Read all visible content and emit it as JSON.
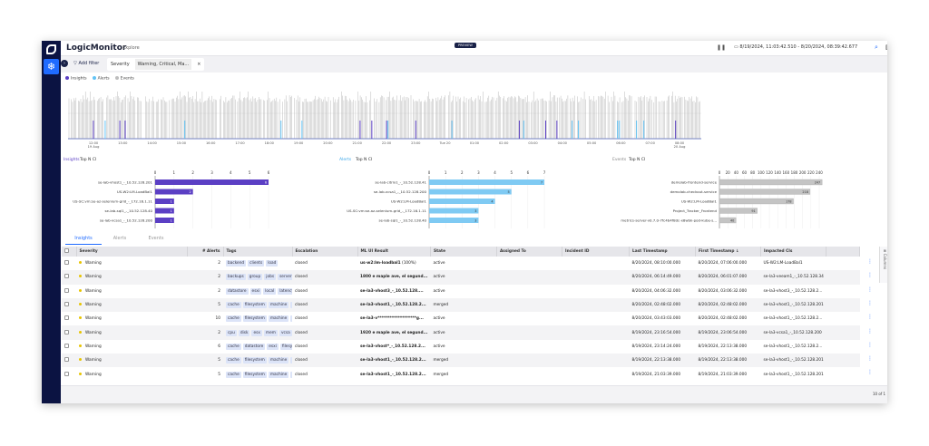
{
  "header": {
    "brand": "LogicMonitor",
    "breadcrumb": "Explore",
    "preview_badge": "PREVIEW",
    "date_range": "8/19/2024, 11:03:42.510 - 8/20/2024, 08:39:42.677"
  },
  "filter": {
    "add_filter": "Add filter",
    "chip_field": "Severity",
    "chip_value": "Warning, Critical, Ma...",
    "chip_close": "×"
  },
  "legend": [
    {
      "label": "Insights",
      "color": "#5b3fc4"
    },
    {
      "label": "Alerts",
      "color": "#62c3f5"
    },
    {
      "label": "Events",
      "color": "#bdbdbd"
    }
  ],
  "timeline": {
    "ticks": [
      "12:00|19 Aug",
      "13:00",
      "14:00",
      "15:00",
      "16:00",
      "17:00",
      "18:00",
      "19:00",
      "20:00",
      "21:00",
      "22:00",
      "23:00",
      "Tue 20",
      "01:00",
      "02:00",
      "03:00",
      "04:00",
      "05:00",
      "06:00",
      "07:00",
      "08:00|20 Aug"
    ],
    "markers": [
      {
        "time": "12:00",
        "type": "insight"
      },
      {
        "time": "12:24",
        "type": "alert"
      },
      {
        "time": "12:54",
        "type": "insight"
      },
      {
        "time": "13:05",
        "type": "insight"
      },
      {
        "time": "15:07",
        "type": "alert"
      },
      {
        "time": "18:24",
        "type": "alert"
      },
      {
        "time": "19:07",
        "type": "alert"
      },
      {
        "time": "21:06",
        "type": "insight"
      },
      {
        "time": "21:30",
        "type": "insight"
      },
      {
        "time": "22:00",
        "type": "insight"
      },
      {
        "time": "22:03",
        "type": "alert"
      },
      {
        "time": "23:00",
        "type": "insight"
      },
      {
        "time": "00:14",
        "type": "alert"
      },
      {
        "time": "02:32",
        "type": "insight"
      },
      {
        "time": "02:41",
        "type": "alert"
      },
      {
        "time": "03:26",
        "type": "insight"
      },
      {
        "time": "03:49",
        "type": "insight"
      },
      {
        "time": "04:20",
        "type": "alert"
      },
      {
        "time": "04:33",
        "type": "alert"
      },
      {
        "time": "05:53",
        "type": "alert"
      },
      {
        "time": "05:57",
        "type": "alert"
      },
      {
        "time": "06:32",
        "type": "alert"
      },
      {
        "time": "06:47",
        "type": "alert"
      },
      {
        "time": "07:52",
        "type": "insight"
      }
    ]
  },
  "charts": [
    {
      "title": "Insights",
      "subtitle": "Top N CI",
      "color": "#5b3fc4",
      "max": 6,
      "ticks": [
        0,
        1,
        2,
        3,
        4,
        5,
        6
      ],
      "labels": [
        "se-lab-vhost1_-_10.52.128.201",
        "US-W2:LM-LoadBal1",
        "US-SC:vm:se-az-selenium-grid_-_172.16.1.11",
        "se-lab-sql1_-_10.52.128.40",
        "se-lab-vcsa1_-_10.52.128.200"
      ],
      "values": [
        6,
        2,
        1,
        1,
        1
      ]
    },
    {
      "title": "Alerts",
      "subtitle": "Top N CI",
      "color": "#7fcaf3",
      "max": 7,
      "ticks": [
        0,
        1,
        2,
        3,
        4,
        5,
        6,
        7
      ],
      "labels": [
        "se-lab-citrix1_-_10.52.128.41",
        "se-lab-vcsa1_-_10.52.128.200",
        "US-W2:LM-LoadBal1",
        "US-SC:vm:se-az-selenium-grid_-_172.16.1.11",
        "se-lab-sql1_-_10.52.128.40"
      ],
      "values": [
        7,
        5,
        4,
        3,
        3
      ]
    },
    {
      "title": "Events",
      "subtitle": "Top N CI",
      "color": "#c4c4c4",
      "max": 240,
      "ticks": [
        0,
        20,
        40,
        60,
        80,
        100,
        120,
        140,
        160,
        180,
        200,
        220,
        240
      ],
      "labels": [
        "demolab-frontend-service",
        "demolab-checkout-service",
        "US-W2:LM-LoadBal1",
        "Project_Tracker_Frontend",
        "metrics-server-v0.7.0-7fc4b4f8dc-x8wbk-pod-kube-s..."
      ],
      "values": [
        247,
        218,
        178,
        91,
        40
      ]
    }
  ],
  "tabs": [
    "Insights",
    "Alerts",
    "Events"
  ],
  "table": {
    "headers": [
      "Severity",
      "# Alerts",
      "Tags",
      "Escalation",
      "ML UI Result",
      "State",
      "Assigned To",
      "Incident ID",
      "Last Timestamp",
      "First Timestamp ↓",
      "Impacted CIs"
    ],
    "rows": [
      {
        "severity": "Warning",
        "alerts": "2",
        "tags": [
          "backend",
          "clients",
          "load"
        ],
        "escalation": "closed",
        "ml": "us-w2:lm-loadbal1",
        "ml_suffix": " (100%)",
        "state": "active",
        "last": "8/20/2024, 08:10:00.000",
        "first": "8/20/2024, 07:06:00.000",
        "ci": "US-W2:LM-LoadBal1"
      },
      {
        "severity": "Warning",
        "alerts": "2",
        "tags": [
          "backups",
          "group",
          "jobs",
          "server"
        ],
        "escalation": "closed",
        "ml": "1800 e maple ave, el segund...",
        "ml_suffix": "",
        "state": "active",
        "last": "8/20/2024, 06:14:49.000",
        "first": "8/20/2024, 06:01:07.000",
        "ci": "se-la3-veeam1_-_10.52.128.34"
      },
      {
        "severity": "Warning",
        "alerts": "2",
        "tags": [
          "datastore",
          "esxi",
          "local",
          "latency"
        ],
        "escalation": "closed",
        "ml": "se-la3-vhost3_-_10.52.128....",
        "ml_suffix": "",
        "state": "active",
        "last": "8/20/2024, 04:06:32.000",
        "first": "8/20/2024, 03:06:32.000",
        "ci": "se-la3-vhost3_-_10.52.128.2..."
      },
      {
        "severity": "Warning",
        "alerts": "5",
        "tags": [
          "cache",
          "filesystem",
          "machine",
          "u"
        ],
        "escalation": "closed",
        "ml": "se-la3-vhost1_-_10.52.128.2...",
        "ml_suffix": "",
        "state": "merged",
        "last": "8/20/2024, 02:48:02.000",
        "first": "8/20/2024, 02:48:02.000",
        "ci": "se-la3-vhost1_-_10.52.128.201"
      },
      {
        "severity": "Warning",
        "alerts": "10",
        "tags": [
          "cache",
          "filesystem",
          "machine",
          "u"
        ],
        "escalation": "closed",
        "ml": "se-la3-v*******************g...",
        "ml_suffix": "",
        "state": "active",
        "last": "8/20/2024, 03:43:03.000",
        "first": "8/20/2024, 02:48:02.000",
        "ci": "se-la3-vhost1_-_10.52.128.2..."
      },
      {
        "severity": "Warning",
        "alerts": "2",
        "tags": [
          "cpu",
          "disk",
          "esx",
          "mem",
          "vcsa"
        ],
        "escalation": "closed",
        "ml": "1920 e maple ave, el segund...",
        "ml_suffix": "",
        "state": "active",
        "last": "8/19/2024, 23:16:54.000",
        "first": "8/19/2024, 23:06:54.000",
        "ci": "se-la3-vcsa1_-_10.52.128.200"
      },
      {
        "severity": "Warning",
        "alerts": "6",
        "tags": [
          "cache",
          "datastore",
          "esxi",
          "filesys"
        ],
        "escalation": "closed",
        "ml": "se-la3-vhost*_-_10.52.128.2...",
        "ml_suffix": "",
        "state": "active",
        "last": "8/19/2024, 23:14:24.000",
        "first": "8/19/2024, 22:13:38.000",
        "ci": "se-la3-vhost1_-_10.52.128.2..."
      },
      {
        "severity": "Warning",
        "alerts": "5",
        "tags": [
          "cache",
          "filesystem",
          "machine",
          "u"
        ],
        "escalation": "closed",
        "ml": "se-la3-vhost1_-_10.52.128.2...",
        "ml_suffix": "",
        "state": "merged",
        "last": "8/19/2024, 22:13:38.000",
        "first": "8/19/2024, 22:13:38.000",
        "ci": "se-la3-vhost1_-_10.52.128.201"
      },
      {
        "severity": "Warning",
        "alerts": "5",
        "tags": [
          "cache",
          "filesystem",
          "machine",
          "u"
        ],
        "escalation": "closed",
        "ml": "se-la3-vhost1_-_10.52.128.2...",
        "ml_suffix": "",
        "state": "merged",
        "last": "8/19/2024, 21:03:39.000",
        "first": "8/19/2024, 21:03:39.000",
        "ci": "se-la3-vhost1_-_10.52.128.201"
      }
    ]
  },
  "columns_tab": "Columns",
  "pagination": "10 of 1"
}
